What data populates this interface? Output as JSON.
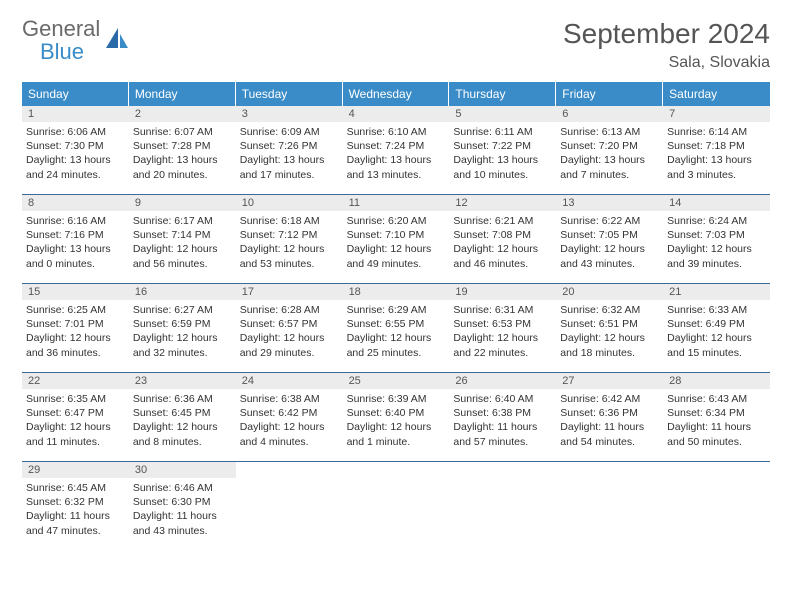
{
  "logo": {
    "word1": "General",
    "word2": "Blue"
  },
  "title": "September 2024",
  "location": "Sala, Slovakia",
  "colors": {
    "header_blue": "#3a8cc8",
    "row_divider": "#3a6a95",
    "daynum_bg": "#ececec",
    "text_gray": "#555555",
    "body_text": "#333333",
    "background": "#ffffff"
  },
  "typography": {
    "title_fontsize": 28,
    "location_fontsize": 16,
    "dayhead_fontsize": 12,
    "daynum_fontsize": 11,
    "cell_fontsize": 10.5
  },
  "day_names": [
    "Sunday",
    "Monday",
    "Tuesday",
    "Wednesday",
    "Thursday",
    "Friday",
    "Saturday"
  ],
  "weeks": [
    [
      {
        "n": "1",
        "sr": "Sunrise: 6:06 AM",
        "ss": "Sunset: 7:30 PM",
        "d1": "Daylight: 13 hours",
        "d2": "and 24 minutes."
      },
      {
        "n": "2",
        "sr": "Sunrise: 6:07 AM",
        "ss": "Sunset: 7:28 PM",
        "d1": "Daylight: 13 hours",
        "d2": "and 20 minutes."
      },
      {
        "n": "3",
        "sr": "Sunrise: 6:09 AM",
        "ss": "Sunset: 7:26 PM",
        "d1": "Daylight: 13 hours",
        "d2": "and 17 minutes."
      },
      {
        "n": "4",
        "sr": "Sunrise: 6:10 AM",
        "ss": "Sunset: 7:24 PM",
        "d1": "Daylight: 13 hours",
        "d2": "and 13 minutes."
      },
      {
        "n": "5",
        "sr": "Sunrise: 6:11 AM",
        "ss": "Sunset: 7:22 PM",
        "d1": "Daylight: 13 hours",
        "d2": "and 10 minutes."
      },
      {
        "n": "6",
        "sr": "Sunrise: 6:13 AM",
        "ss": "Sunset: 7:20 PM",
        "d1": "Daylight: 13 hours",
        "d2": "and 7 minutes."
      },
      {
        "n": "7",
        "sr": "Sunrise: 6:14 AM",
        "ss": "Sunset: 7:18 PM",
        "d1": "Daylight: 13 hours",
        "d2": "and 3 minutes."
      }
    ],
    [
      {
        "n": "8",
        "sr": "Sunrise: 6:16 AM",
        "ss": "Sunset: 7:16 PM",
        "d1": "Daylight: 13 hours",
        "d2": "and 0 minutes."
      },
      {
        "n": "9",
        "sr": "Sunrise: 6:17 AM",
        "ss": "Sunset: 7:14 PM",
        "d1": "Daylight: 12 hours",
        "d2": "and 56 minutes."
      },
      {
        "n": "10",
        "sr": "Sunrise: 6:18 AM",
        "ss": "Sunset: 7:12 PM",
        "d1": "Daylight: 12 hours",
        "d2": "and 53 minutes."
      },
      {
        "n": "11",
        "sr": "Sunrise: 6:20 AM",
        "ss": "Sunset: 7:10 PM",
        "d1": "Daylight: 12 hours",
        "d2": "and 49 minutes."
      },
      {
        "n": "12",
        "sr": "Sunrise: 6:21 AM",
        "ss": "Sunset: 7:08 PM",
        "d1": "Daylight: 12 hours",
        "d2": "and 46 minutes."
      },
      {
        "n": "13",
        "sr": "Sunrise: 6:22 AM",
        "ss": "Sunset: 7:05 PM",
        "d1": "Daylight: 12 hours",
        "d2": "and 43 minutes."
      },
      {
        "n": "14",
        "sr": "Sunrise: 6:24 AM",
        "ss": "Sunset: 7:03 PM",
        "d1": "Daylight: 12 hours",
        "d2": "and 39 minutes."
      }
    ],
    [
      {
        "n": "15",
        "sr": "Sunrise: 6:25 AM",
        "ss": "Sunset: 7:01 PM",
        "d1": "Daylight: 12 hours",
        "d2": "and 36 minutes."
      },
      {
        "n": "16",
        "sr": "Sunrise: 6:27 AM",
        "ss": "Sunset: 6:59 PM",
        "d1": "Daylight: 12 hours",
        "d2": "and 32 minutes."
      },
      {
        "n": "17",
        "sr": "Sunrise: 6:28 AM",
        "ss": "Sunset: 6:57 PM",
        "d1": "Daylight: 12 hours",
        "d2": "and 29 minutes."
      },
      {
        "n": "18",
        "sr": "Sunrise: 6:29 AM",
        "ss": "Sunset: 6:55 PM",
        "d1": "Daylight: 12 hours",
        "d2": "and 25 minutes."
      },
      {
        "n": "19",
        "sr": "Sunrise: 6:31 AM",
        "ss": "Sunset: 6:53 PM",
        "d1": "Daylight: 12 hours",
        "d2": "and 22 minutes."
      },
      {
        "n": "20",
        "sr": "Sunrise: 6:32 AM",
        "ss": "Sunset: 6:51 PM",
        "d1": "Daylight: 12 hours",
        "d2": "and 18 minutes."
      },
      {
        "n": "21",
        "sr": "Sunrise: 6:33 AM",
        "ss": "Sunset: 6:49 PM",
        "d1": "Daylight: 12 hours",
        "d2": "and 15 minutes."
      }
    ],
    [
      {
        "n": "22",
        "sr": "Sunrise: 6:35 AM",
        "ss": "Sunset: 6:47 PM",
        "d1": "Daylight: 12 hours",
        "d2": "and 11 minutes."
      },
      {
        "n": "23",
        "sr": "Sunrise: 6:36 AM",
        "ss": "Sunset: 6:45 PM",
        "d1": "Daylight: 12 hours",
        "d2": "and 8 minutes."
      },
      {
        "n": "24",
        "sr": "Sunrise: 6:38 AM",
        "ss": "Sunset: 6:42 PM",
        "d1": "Daylight: 12 hours",
        "d2": "and 4 minutes."
      },
      {
        "n": "25",
        "sr": "Sunrise: 6:39 AM",
        "ss": "Sunset: 6:40 PM",
        "d1": "Daylight: 12 hours",
        "d2": "and 1 minute."
      },
      {
        "n": "26",
        "sr": "Sunrise: 6:40 AM",
        "ss": "Sunset: 6:38 PM",
        "d1": "Daylight: 11 hours",
        "d2": "and 57 minutes."
      },
      {
        "n": "27",
        "sr": "Sunrise: 6:42 AM",
        "ss": "Sunset: 6:36 PM",
        "d1": "Daylight: 11 hours",
        "d2": "and 54 minutes."
      },
      {
        "n": "28",
        "sr": "Sunrise: 6:43 AM",
        "ss": "Sunset: 6:34 PM",
        "d1": "Daylight: 11 hours",
        "d2": "and 50 minutes."
      }
    ],
    [
      {
        "n": "29",
        "sr": "Sunrise: 6:45 AM",
        "ss": "Sunset: 6:32 PM",
        "d1": "Daylight: 11 hours",
        "d2": "and 47 minutes."
      },
      {
        "n": "30",
        "sr": "Sunrise: 6:46 AM",
        "ss": "Sunset: 6:30 PM",
        "d1": "Daylight: 11 hours",
        "d2": "and 43 minutes."
      },
      null,
      null,
      null,
      null,
      null
    ]
  ]
}
